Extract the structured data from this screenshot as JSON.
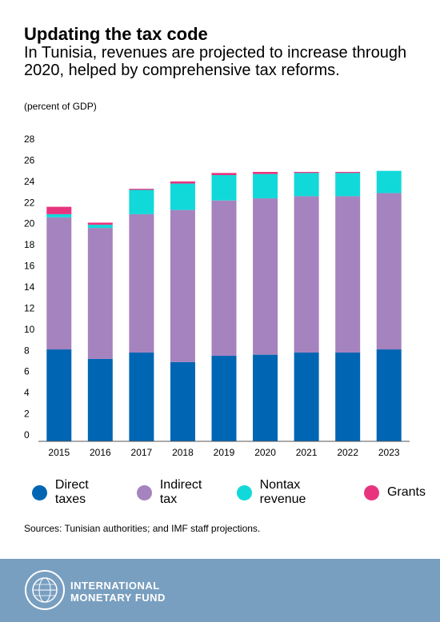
{
  "header": {
    "title": "Updating the tax code",
    "subtitle": "In Tunisia, revenues are projected to increase through 2020, helped by comprehensive tax reforms.",
    "unit": "(percent of GDP)"
  },
  "chart_data": {
    "type": "bar",
    "stacked": true,
    "categories": [
      "2015",
      "2016",
      "2017",
      "2018",
      "2019",
      "2020",
      "2021",
      "2022",
      "2023"
    ],
    "series": [
      {
        "name": "Direct taxes",
        "color": "#0066b3",
        "values": [
          8.7,
          7.8,
          8.4,
          7.5,
          8.1,
          8.2,
          8.4,
          8.4,
          8.7
        ]
      },
      {
        "name": "Indirect tax",
        "color": "#a583be",
        "values": [
          12.5,
          12.4,
          13.1,
          14.4,
          14.7,
          14.8,
          14.8,
          14.8,
          14.8
        ]
      },
      {
        "name": "Nontax revenue",
        "color": "#12d9d9",
        "values": [
          0.3,
          0.3,
          2.3,
          2.5,
          2.4,
          2.3,
          2.2,
          2.2,
          2.1
        ]
      },
      {
        "name": "Grants",
        "color": "#e8347f",
        "values": [
          0.7,
          0.2,
          0.1,
          0.2,
          0.2,
          0.2,
          0.1,
          0.1,
          0.0
        ]
      }
    ],
    "yticks": [
      "0",
      "2",
      "4",
      "6",
      "8",
      "10",
      "12",
      "14",
      "16",
      "18",
      "20",
      "22",
      "24",
      "26",
      "28"
    ],
    "ylim": [
      0,
      28
    ],
    "grid": false,
    "legend_position": "bottom"
  },
  "source": "Sources: Tunisian authorities; and IMF staff projections.",
  "footer": {
    "org_line1": "INTERNATIONAL",
    "org_line2": "MONETARY FUND",
    "seal_text": "INTERNATIONAL MONETARY FUND"
  }
}
